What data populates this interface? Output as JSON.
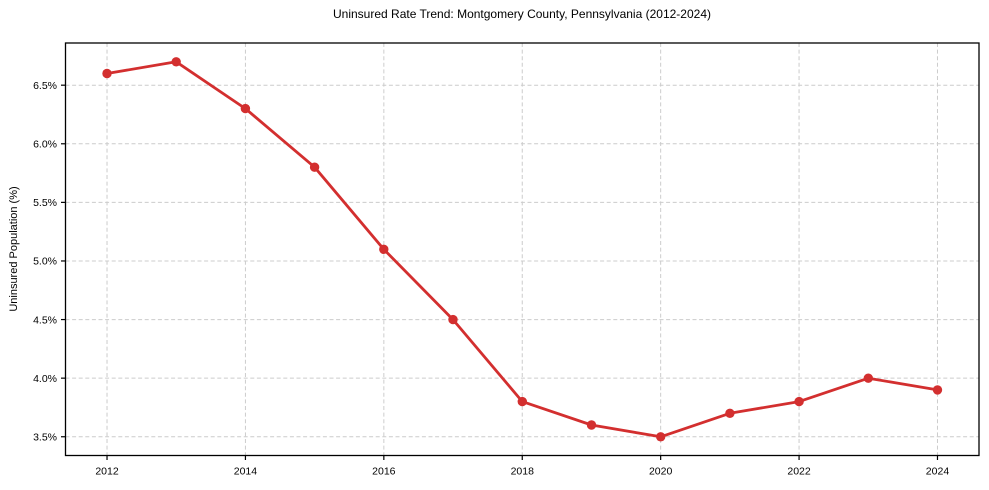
{
  "chart_data": {
    "type": "line",
    "title": "Uninsured Rate Trend: Montgomery County, Pennsylvania (2012-2024)",
    "xlabel": "",
    "ylabel": "Uninsured Population (%)",
    "x": [
      2012,
      2013,
      2014,
      2015,
      2016,
      2017,
      2018,
      2019,
      2020,
      2021,
      2022,
      2023,
      2024
    ],
    "series": [
      {
        "name": "Uninsured Population (%)",
        "values": [
          6.6,
          6.7,
          6.3,
          5.8,
          5.1,
          4.5,
          3.8,
          3.6,
          3.5,
          3.7,
          3.8,
          4.0,
          3.9
        ]
      }
    ],
    "xlim": [
      2011.4,
      2024.6
    ],
    "ylim": [
      3.34,
      6.86
    ],
    "x_ticks": [
      2012,
      2014,
      2016,
      2018,
      2020,
      2022,
      2024
    ],
    "x_tick_labels": [
      "2012",
      "2014",
      "2016",
      "2018",
      "2020",
      "2022",
      "2024"
    ],
    "y_ticks": [
      3.5,
      4.0,
      4.5,
      5.0,
      5.5,
      6.0,
      6.5
    ],
    "y_tick_labels": [
      "3.5%",
      "4.0%",
      "4.5%",
      "5.0%",
      "5.5%",
      "6.0%",
      "6.5%"
    ],
    "legend_position": "none",
    "grid": true,
    "grid_style": "dashed",
    "colors": {
      "line": "#d32f2f",
      "marker": "#d32f2f",
      "grid": "#cccccc",
      "spine": "#000000",
      "text": "#000000",
      "background": "#ffffff"
    }
  }
}
